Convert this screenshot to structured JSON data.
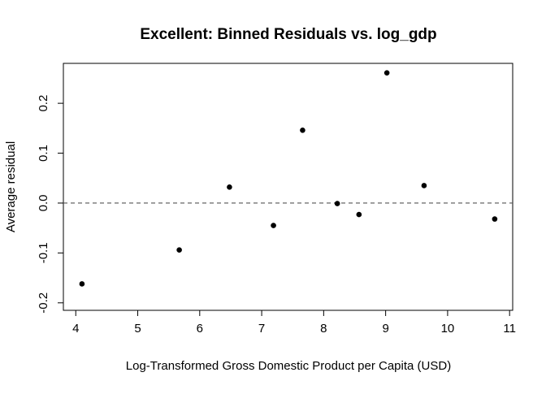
{
  "chart_data": {
    "type": "scatter",
    "title": "Excellent: Binned Residuals vs. log_gdp",
    "xlabel": "Log-Transformed Gross Domestic Product per Capita (USD)",
    "ylabel": "Average residual",
    "xlim": [
      3.8,
      11.05
    ],
    "ylim": [
      -0.215,
      0.28
    ],
    "x_ticks": [
      4,
      5,
      6,
      7,
      8,
      9,
      10,
      11
    ],
    "x_tick_labels": [
      "4",
      "5",
      "6",
      "7",
      "8",
      "9",
      "10",
      "11"
    ],
    "y_ticks": [
      -0.2,
      -0.1,
      0.0,
      0.1,
      0.2
    ],
    "y_tick_labels": [
      "-0.2",
      "-0.1",
      "0.0",
      "0.1",
      "0.2"
    ],
    "reference_line": {
      "y": 0,
      "style": "dashed",
      "color": "#555555"
    },
    "grid": false,
    "point_color": "#000000",
    "points": [
      {
        "x": 4.1,
        "y": -0.162
      },
      {
        "x": 5.67,
        "y": -0.094
      },
      {
        "x": 6.48,
        "y": 0.032
      },
      {
        "x": 7.19,
        "y": -0.045
      },
      {
        "x": 7.66,
        "y": 0.146
      },
      {
        "x": 8.22,
        "y": -0.001
      },
      {
        "x": 8.57,
        "y": -0.023
      },
      {
        "x": 9.02,
        "y": 0.261
      },
      {
        "x": 9.62,
        "y": 0.035
      },
      {
        "x": 10.76,
        "y": -0.032
      }
    ]
  }
}
